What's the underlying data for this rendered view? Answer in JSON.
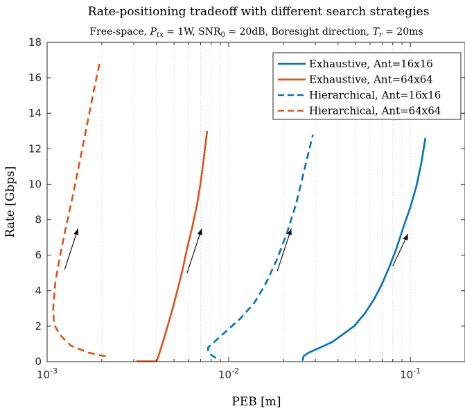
{
  "chart_data": {
    "type": "line",
    "title": "Rate-positioning tradeoff with different search strategies",
    "subtitle": {
      "pre": "Free-space, ",
      "ptx_sym": "P",
      "ptx_sub": "tx",
      "ptx_val": " = 1W, SNR",
      "snr_sub": "0",
      "snr_val": " = 20dB, Boresight direction, ",
      "tr_sym": "T",
      "tr_sub": "r",
      "tr_val": " = 20ms"
    },
    "xlabel": "PEB [m]",
    "ylabel": "Rate [Gbps]",
    "xscale": "log",
    "xlim": [
      0.001,
      0.2
    ],
    "ylim": [
      0,
      18
    ],
    "grid": "on (vertical minor grid)",
    "legend_position": "top-right",
    "x_ticks": [
      {
        "value": 0.001,
        "base": "10",
        "exp": "-3"
      },
      {
        "value": 0.01,
        "base": "10",
        "exp": "-2"
      },
      {
        "value": 0.1,
        "base": "10",
        "exp": "-1"
      }
    ],
    "y_ticks": [
      0,
      2,
      4,
      6,
      8,
      10,
      12,
      14,
      16,
      18
    ],
    "series": [
      {
        "name": "Exhaustive, Ant=16x16",
        "color": "#0072BD",
        "style": "solid",
        "points": [
          [
            0.0255,
            0.05
          ],
          [
            0.0258,
            0.3
          ],
          [
            0.0275,
            0.5
          ],
          [
            0.032,
            0.8
          ],
          [
            0.037,
            1.1
          ],
          [
            0.042,
            1.5
          ],
          [
            0.049,
            2.0
          ],
          [
            0.056,
            2.7
          ],
          [
            0.063,
            3.5
          ],
          [
            0.07,
            4.4
          ],
          [
            0.077,
            5.4
          ],
          [
            0.084,
            6.4
          ],
          [
            0.091,
            7.5
          ],
          [
            0.1,
            8.7
          ],
          [
            0.108,
            9.9
          ],
          [
            0.115,
            11.2
          ],
          [
            0.121,
            12.6
          ]
        ]
      },
      {
        "name": "Exhaustive, Ant=64x64",
        "color": "#D95319",
        "style": "solid",
        "points": [
          [
            0.0031,
            0.02
          ],
          [
            0.004,
            0.02
          ],
          [
            0.0041,
            0.3
          ],
          [
            0.0044,
            1.3
          ],
          [
            0.0047,
            2.3
          ],
          [
            0.005,
            3.3
          ],
          [
            0.0053,
            4.3
          ],
          [
            0.0056,
            5.3
          ],
          [
            0.0059,
            6.4
          ],
          [
            0.0063,
            7.6
          ],
          [
            0.0067,
            8.9
          ],
          [
            0.007,
            10.1
          ],
          [
            0.0073,
            11.5
          ],
          [
            0.0076,
            13.0
          ]
        ]
      },
      {
        "name": "Hierarchical, Ant=16x16",
        "color": "#0072BD",
        "style": "dashed",
        "points": [
          [
            0.0085,
            0.2
          ],
          [
            0.0077,
            0.5
          ],
          [
            0.0077,
            0.8
          ],
          [
            0.0094,
            1.6
          ],
          [
            0.0115,
            2.4
          ],
          [
            0.0138,
            3.3
          ],
          [
            0.016,
            4.4
          ],
          [
            0.0185,
            5.8
          ],
          [
            0.021,
            7.3
          ],
          [
            0.0235,
            8.9
          ],
          [
            0.0255,
            10.4
          ],
          [
            0.0275,
            11.8
          ],
          [
            0.0291,
            12.8
          ]
        ]
      },
      {
        "name": "Hierarchical, Ant=64x64",
        "color": "#D95319",
        "style": "dashed",
        "points": [
          [
            0.0021,
            0.3
          ],
          [
            0.0017,
            0.5
          ],
          [
            0.00135,
            0.9
          ],
          [
            0.00118,
            1.5
          ],
          [
            0.00109,
            2.1
          ],
          [
            0.00108,
            3.0
          ],
          [
            0.00111,
            4.5
          ],
          [
            0.00118,
            6.0
          ],
          [
            0.00127,
            7.6
          ],
          [
            0.00138,
            9.3
          ],
          [
            0.0015,
            11.1
          ],
          [
            0.00164,
            13.1
          ],
          [
            0.0018,
            15.2
          ],
          [
            0.00196,
            17.0
          ]
        ]
      }
    ],
    "arrows": [
      {
        "from": [
          0.00125,
          5.2
        ],
        "to": [
          0.00148,
          7.5
        ]
      },
      {
        "from": [
          0.0059,
          5.0
        ],
        "to": [
          0.0071,
          7.5
        ]
      },
      {
        "from": [
          0.0185,
          5.1
        ],
        "to": [
          0.0221,
          7.5
        ]
      },
      {
        "from": [
          0.08,
          5.4
        ],
        "to": [
          0.0972,
          7.2
        ]
      }
    ]
  }
}
